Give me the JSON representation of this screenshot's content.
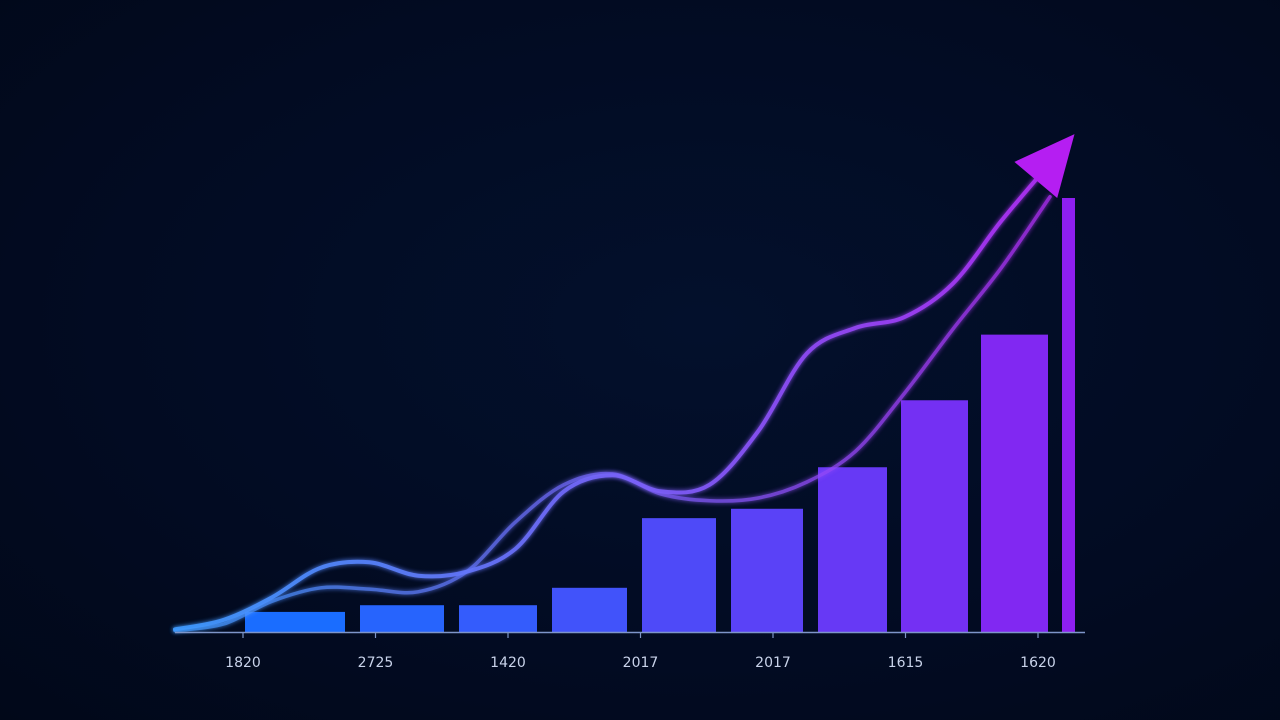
{
  "chart_data": {
    "type": "bar",
    "title": "",
    "xlabel": "",
    "ylabel": "",
    "tick_labels": [
      "1820",
      "2725",
      "1420",
      "2017",
      "2017",
      "1615",
      "1620"
    ],
    "values": [
      1.5,
      2.0,
      2.0,
      3.3,
      8.5,
      9.2,
      12.3,
      17.3,
      22.2,
      32.4
    ],
    "ylim": [
      0,
      32.4
    ],
    "trend_lines": [
      {
        "x": [
          0,
          0.5,
          1,
          1.5,
          2,
          2.5,
          3,
          3.5,
          4,
          4.5,
          5,
          5.5,
          6,
          6.5,
          7,
          7.5,
          8,
          8.5,
          9
        ],
        "values": [
          0.2,
          0.9,
          2.6,
          4.8,
          5.2,
          4.2,
          4.5,
          6.2,
          10.5,
          11.7,
          10.5,
          11.0,
          15.0,
          20.8,
          22.7,
          23.5,
          26.0,
          30.7,
          35.0
        ]
      },
      {
        "x": [
          0,
          0.5,
          1,
          1.5,
          2,
          2.5,
          3,
          3.5,
          4,
          4.5,
          5,
          5.5,
          6,
          6.5,
          7,
          7.5,
          8,
          8.5,
          9
        ],
        "values": [
          0.1,
          0.6,
          2.3,
          3.3,
          3.2,
          3.0,
          4.5,
          8.2,
          11.0,
          11.8,
          10.3,
          9.8,
          10.0,
          11.2,
          13.5,
          17.8,
          22.6,
          27.2,
          32.5
        ]
      }
    ],
    "grid": false,
    "legend": "none",
    "colors": {
      "background": "#020c24",
      "bar_start": "#1a6dff",
      "bar_end": "#8e1ff0",
      "axis": "#7e95c9",
      "line_start": "#3f9bff",
      "line_end": "#b02ef5",
      "arrow": "#b51ef2"
    }
  }
}
